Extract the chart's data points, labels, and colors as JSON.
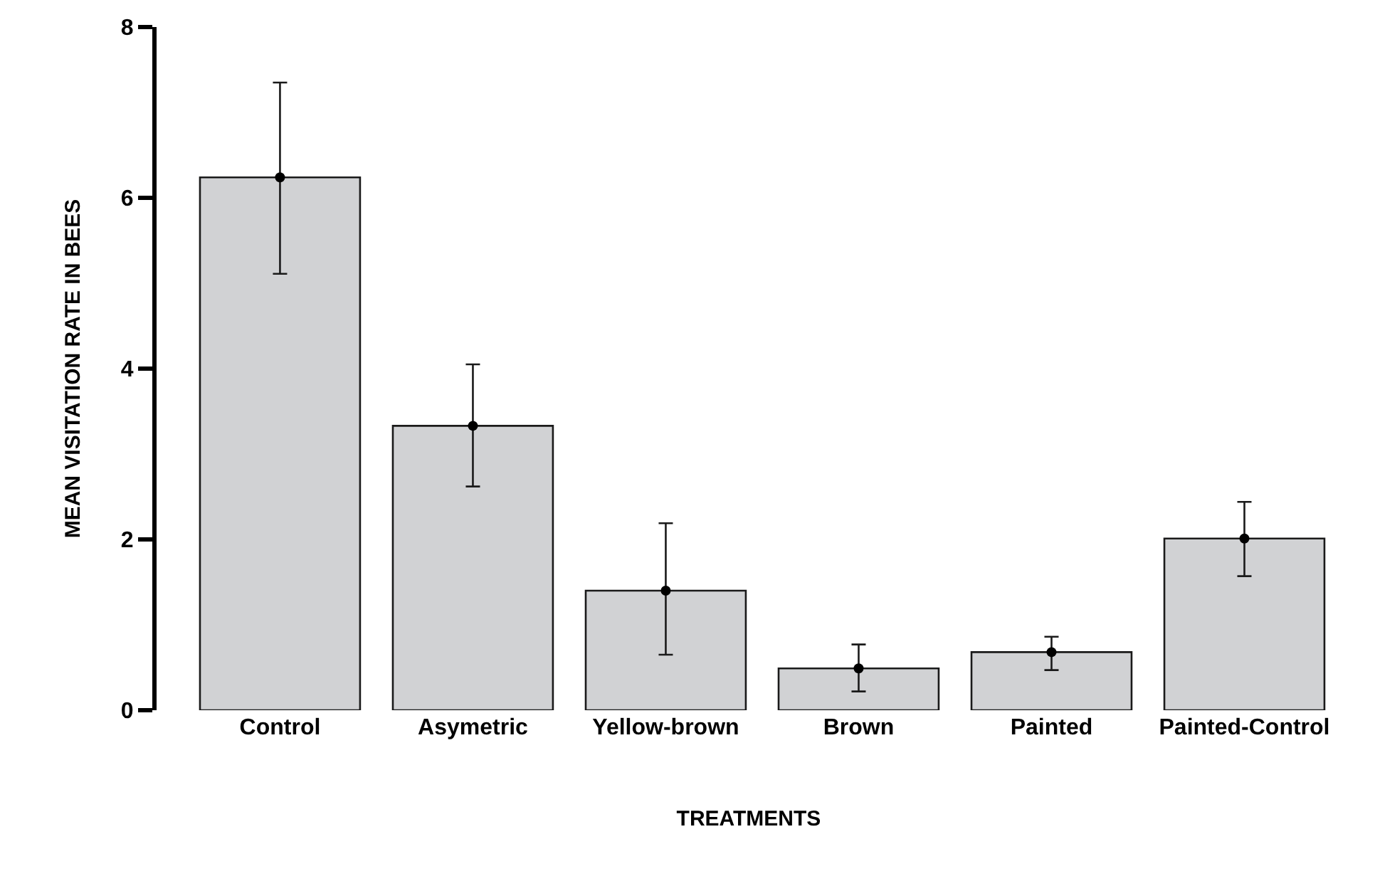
{
  "chart_data": {
    "type": "bar",
    "xlabel": "TREATMENTS",
    "ylabel": "MEAN VISITATION RATE IN BEES",
    "categories": [
      "Control",
      "Asymetric",
      "Yellow-brown",
      "Brown",
      "Painted",
      "Painted-Control"
    ],
    "series": [
      {
        "color": "#d1d2d4",
        "values": [
          6.24,
          3.33,
          1.4,
          0.49,
          0.68,
          2.01
        ],
        "errors": [
          [
            5.11,
            7.35
          ],
          [
            2.62,
            4.05
          ],
          [
            0.65,
            2.19
          ],
          [
            0.22,
            0.77
          ],
          [
            0.47,
            0.86
          ],
          [
            1.57,
            2.44
          ]
        ]
      },
      {
        "type": "scatter",
        "color": "#000000",
        "x": [
          "Control",
          "Asymetric",
          "Yellow-brown",
          "Brown",
          "Painted",
          "Painted-Control"
        ],
        "values": [
          6.24,
          3.33,
          1.4,
          0.49,
          0.68,
          2.01
        ]
      }
    ],
    "marker": "circle",
    "ylim": [
      0,
      8
    ],
    "yticks": [
      0,
      2,
      4,
      6,
      8
    ],
    "grid": false
  }
}
